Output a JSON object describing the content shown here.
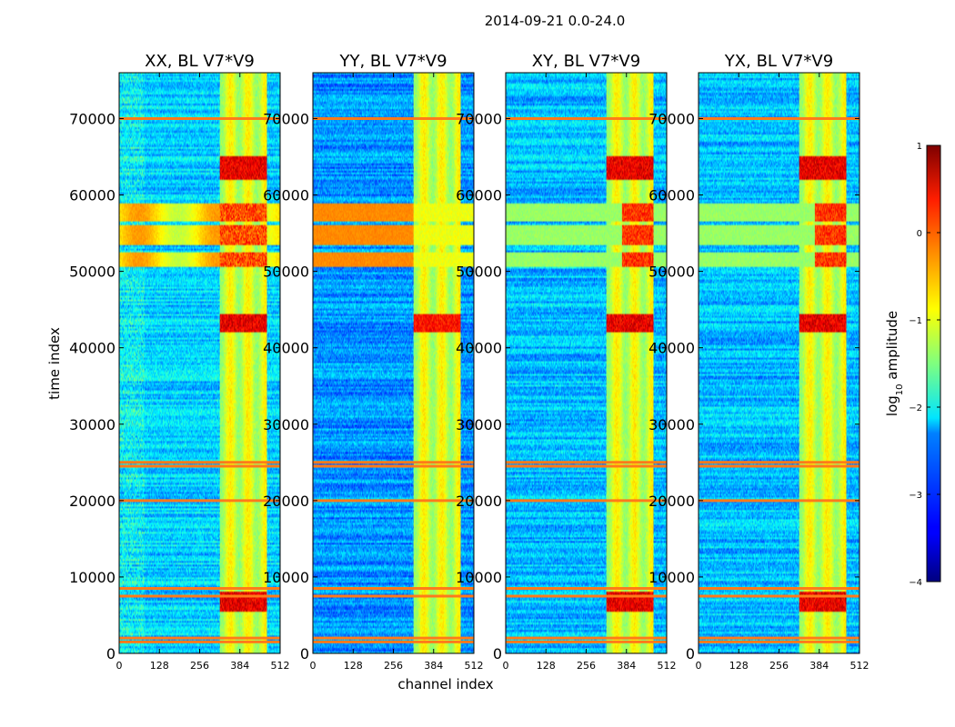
{
  "figure": {
    "suptitle": "2014-09-21 0.0-24.0",
    "xlabel": "channel index",
    "ylabel": "time index"
  },
  "colors": {
    "colormap": "jet"
  },
  "chart_data": {
    "type": "heatmap",
    "panels": [
      {
        "title": "XX, BL V7*V9",
        "pol": "XX"
      },
      {
        "title": "YY, BL V7*V9",
        "pol": "YY"
      },
      {
        "title": "XY, BL V7*V9",
        "pol": "XY"
      },
      {
        "title": "YX, BL V7*V9",
        "pol": "YX"
      }
    ],
    "xlim": [
      0,
      512
    ],
    "x_ticks": [
      0,
      128,
      256,
      384,
      512
    ],
    "x_tick_labels": [
      "0",
      "128",
      "256",
      "384",
      "512"
    ],
    "ylim": [
      0,
      76000
    ],
    "y_ticks": [
      0,
      10000,
      20000,
      30000,
      40000,
      50000,
      60000,
      70000
    ],
    "y_tick_labels": [
      "0",
      "10000",
      "20000",
      "30000",
      "40000",
      "50000",
      "60000",
      "70000"
    ],
    "colorbar": {
      "label": "log₁₀ amplitude",
      "label_main": "log",
      "label_sub": "10",
      "label_rest": " amplitude",
      "range": [
        -4,
        1
      ],
      "ticks": [
        1,
        0,
        -1,
        -2,
        -3,
        -4
      ],
      "tick_labels": [
        "1",
        "0",
        "−1",
        "−2",
        "−3",
        "−4"
      ]
    },
    "rfi_channel_range": [
      320,
      470
    ],
    "bright_time_bands": [
      [
        50500,
        52500
      ],
      [
        53500,
        56000
      ],
      [
        56500,
        59000
      ]
    ],
    "flagged_time_rows": [
      1500,
      2000,
      7500,
      8500,
      20000,
      24500,
      25000,
      70000
    ]
  }
}
